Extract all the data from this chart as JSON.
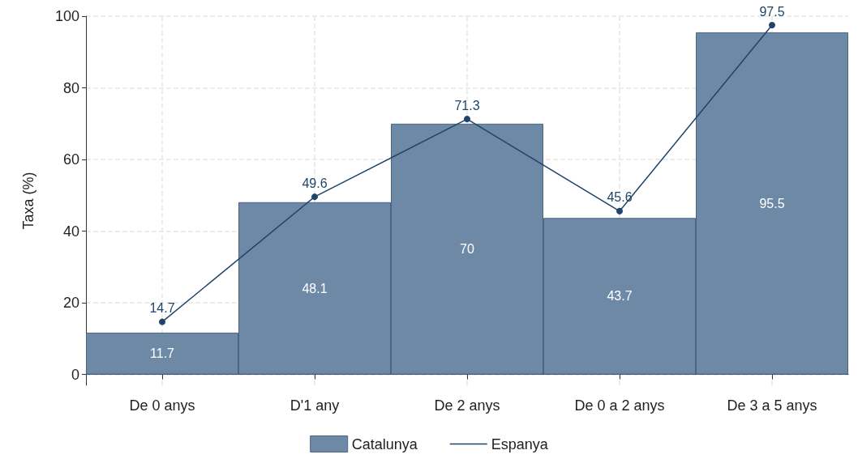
{
  "chart_data": {
    "type": "bar",
    "ylabel": "Taxa (%)",
    "categories": [
      "De 0 anys",
      "D'1 any",
      "De 2 anys",
      "De 0 a 2 anys",
      "De 3 a 5 anys"
    ],
    "series": [
      {
        "name": "Catalunya",
        "color": "#6e89a6",
        "values": [
          11.7,
          48.1,
          70,
          43.7,
          95.5
        ]
      },
      {
        "name": "Espanya",
        "type": "line",
        "color": "#1f4469",
        "values": [
          14.7,
          49.6,
          71.3,
          45.6,
          97.5
        ],
        "marker": "circle"
      }
    ],
    "ylim": [
      -3,
      100
    ],
    "yticks": [
      0,
      20,
      40,
      60,
      80,
      100
    ],
    "grid": true,
    "legend": "bottom",
    "data_labels": true
  }
}
